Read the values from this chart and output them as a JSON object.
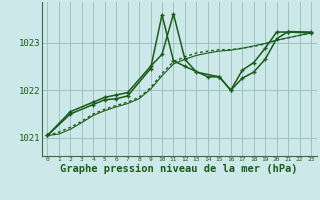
{
  "bg_color": "#cce8e8",
  "grid_color": "#99bbbb",
  "line_color": "#1a5c1a",
  "xlabel": "Graphe pression niveau de la mer (hPa)",
  "xlabel_fontsize": 7.5,
  "yticks": [
    1021,
    1022,
    1023
  ],
  "ylim": [
    1020.62,
    1023.85
  ],
  "xlim": [
    -0.5,
    23.5
  ],
  "xticks": [
    0,
    1,
    2,
    3,
    4,
    5,
    6,
    7,
    8,
    9,
    10,
    11,
    12,
    13,
    14,
    15,
    16,
    17,
    18,
    19,
    20,
    21,
    22,
    23
  ],
  "series": [
    {
      "x": [
        0,
        1,
        2,
        3,
        4,
        5,
        6,
        7,
        8,
        9,
        10,
        11,
        12,
        13,
        14,
        15,
        16,
        17,
        18,
        19,
        20,
        21,
        22,
        23
      ],
      "y": [
        1021.05,
        1021.12,
        1021.22,
        1021.35,
        1021.5,
        1021.6,
        1021.68,
        1021.75,
        1021.85,
        1022.05,
        1022.35,
        1022.6,
        1022.7,
        1022.78,
        1022.82,
        1022.85,
        1022.85,
        1022.88,
        1022.92,
        1022.97,
        1023.05,
        1023.1,
        1023.15,
        1023.2
      ],
      "style": "dotted",
      "lw": 1.0,
      "marker": false
    },
    {
      "x": [
        0,
        1,
        2,
        3,
        4,
        5,
        6,
        7,
        8,
        9,
        10,
        11,
        12,
        13,
        14,
        15,
        16,
        17,
        18,
        19,
        20,
        21,
        22,
        23
      ],
      "y": [
        1021.05,
        1021.08,
        1021.18,
        1021.32,
        1021.47,
        1021.57,
        1021.65,
        1021.72,
        1021.82,
        1022.02,
        1022.3,
        1022.55,
        1022.65,
        1022.73,
        1022.78,
        1022.82,
        1022.84,
        1022.88,
        1022.93,
        1022.98,
        1023.05,
        1023.1,
        1023.15,
        1023.2
      ],
      "style": "solid",
      "lw": 0.8,
      "marker": false
    },
    {
      "x": [
        0,
        2,
        4,
        5,
        6,
        7,
        9,
        10,
        11,
        12,
        13,
        15,
        16,
        17,
        18,
        19,
        20,
        21,
        23
      ],
      "y": [
        1021.05,
        1021.55,
        1021.75,
        1021.85,
        1021.9,
        1021.95,
        1022.5,
        1022.75,
        1023.6,
        1022.65,
        1022.38,
        1022.28,
        1022.0,
        1022.25,
        1022.38,
        1022.65,
        1023.08,
        1023.23,
        1023.22
      ],
      "style": "solid",
      "lw": 1.1,
      "marker": true
    },
    {
      "x": [
        0,
        2,
        4,
        5,
        6,
        7,
        9,
        10,
        11,
        12,
        14,
        15,
        16,
        17,
        18,
        19,
        20,
        21,
        23
      ],
      "y": [
        1021.05,
        1021.5,
        1021.7,
        1021.8,
        1021.82,
        1021.88,
        1022.45,
        1023.58,
        1022.62,
        1022.5,
        1022.28,
        1022.28,
        1022.0,
        1022.42,
        1022.58,
        1022.88,
        1023.22,
        1023.22,
        1023.2
      ],
      "style": "solid",
      "lw": 1.1,
      "marker": true
    }
  ]
}
